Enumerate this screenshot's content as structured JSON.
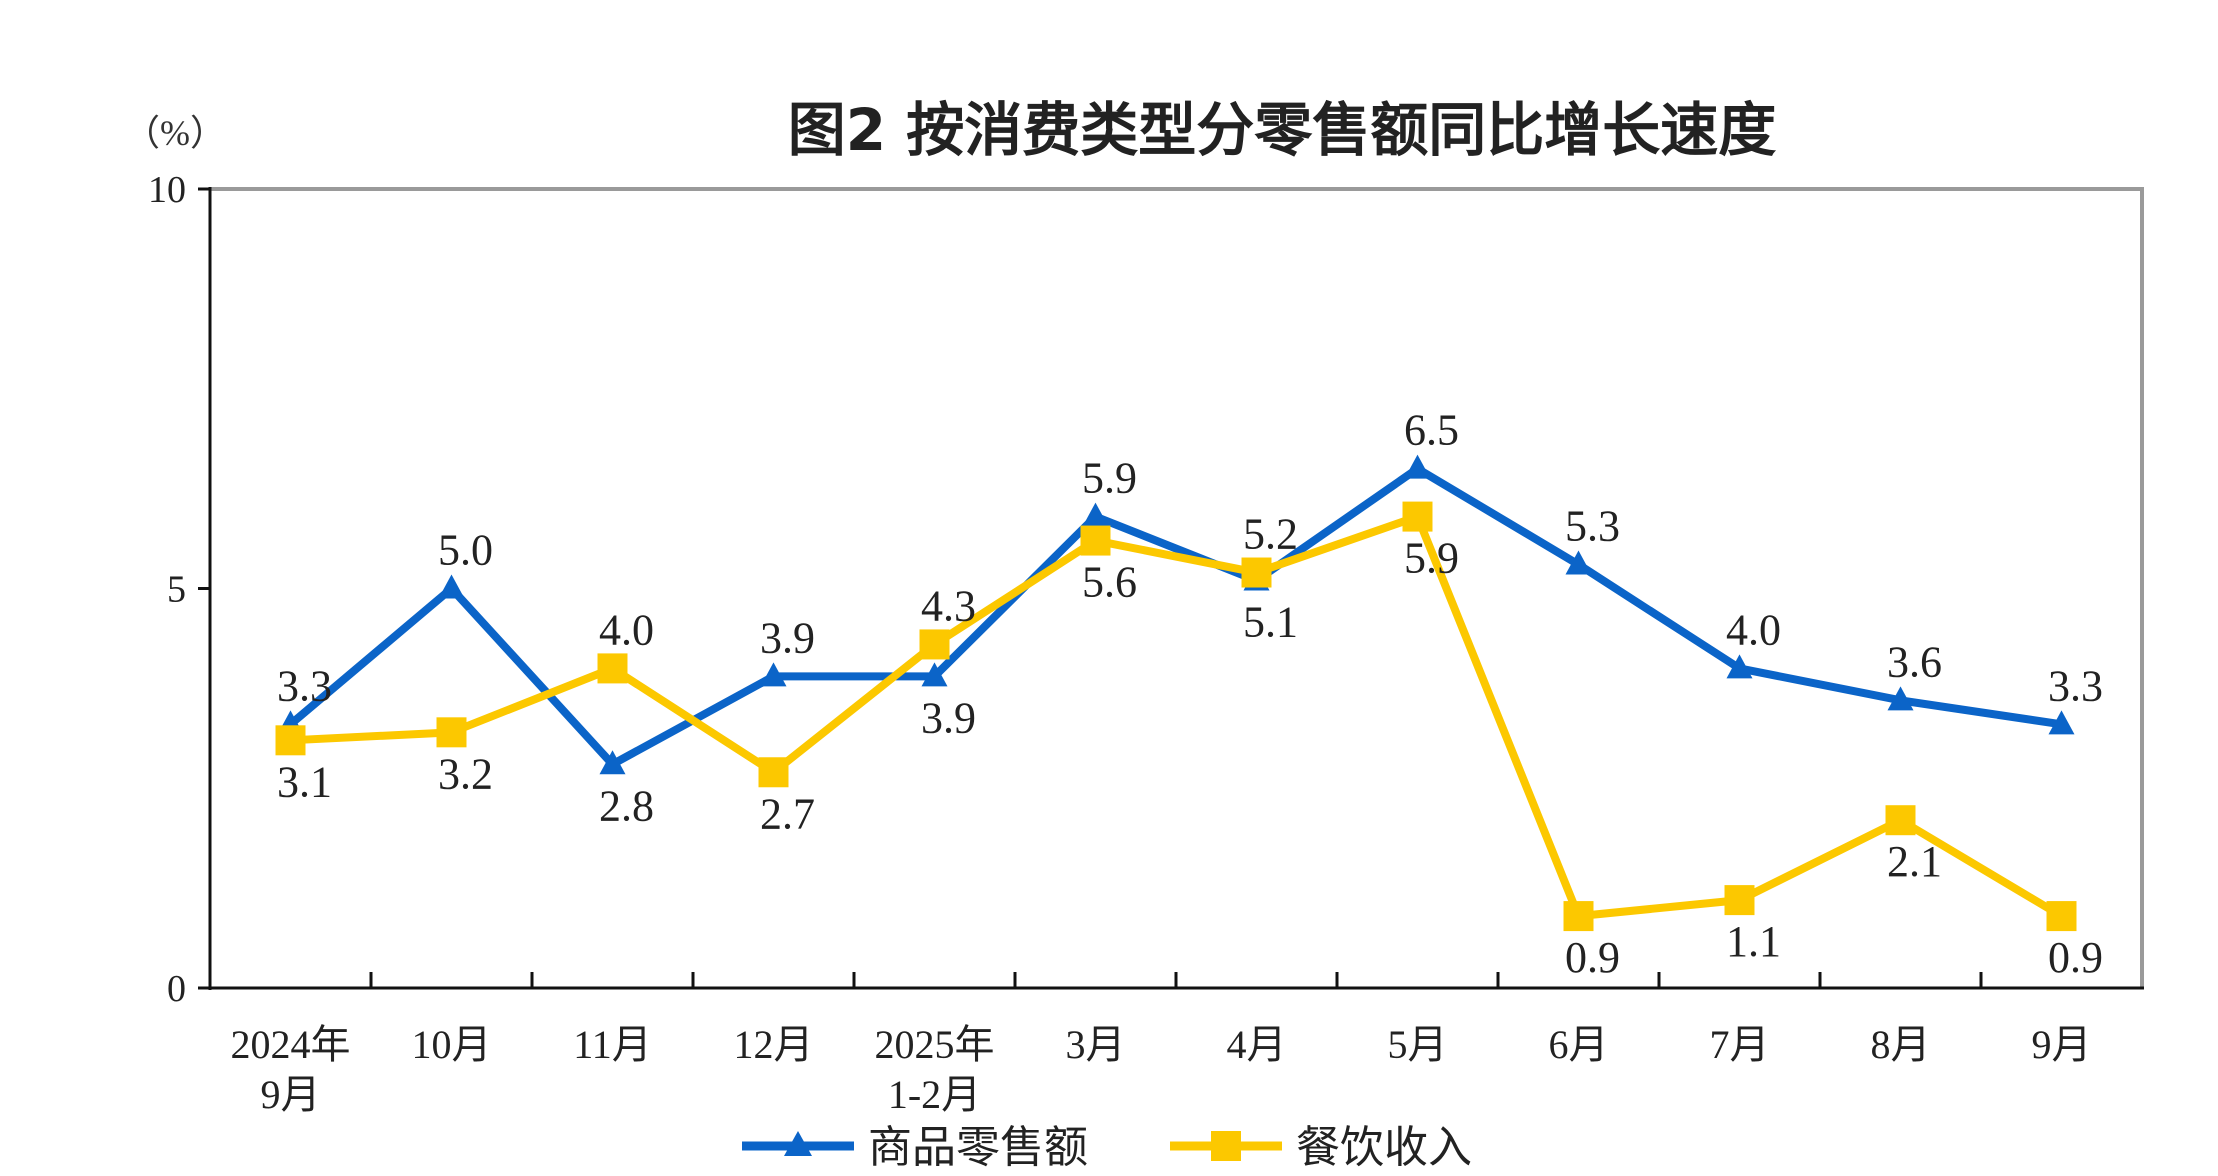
{
  "chart_data": {
    "type": "line",
    "title": "图2  按消费类型分零售额同比增长速度",
    "ylabel": "（%）",
    "xlabel": "",
    "ylim": [
      0,
      10
    ],
    "yticks": [
      "0",
      "5",
      "10"
    ],
    "categories": [
      "2024年\n9月",
      "10月",
      "11月",
      "12月",
      "2025年\n1-2月",
      "3月",
      "4月",
      "5月",
      "6月",
      "7月",
      "8月",
      "9月"
    ],
    "grid": false,
    "legend_position": "bottom",
    "series": [
      {
        "name": "商品零售额",
        "color": "#0b64c8",
        "marker": "triangle",
        "values": [
          3.3,
          5.0,
          2.8,
          3.9,
          3.9,
          5.9,
          5.1,
          6.5,
          5.3,
          4.0,
          3.6,
          3.3
        ],
        "labels": [
          "3.3",
          "5.0",
          "2.8",
          "3.9",
          "3.9",
          "5.9",
          "5.1",
          "6.5",
          "5.3",
          "4.0",
          "3.6",
          "3.3"
        ]
      },
      {
        "name": "餐饮收入",
        "color": "#fcc800",
        "marker": "square",
        "values": [
          3.1,
          3.2,
          4.0,
          2.7,
          4.3,
          5.6,
          5.2,
          5.9,
          0.9,
          1.1,
          2.1,
          0.9
        ],
        "labels": [
          "3.1",
          "3.2",
          "4.0",
          "2.7",
          "4.3",
          "5.6",
          "5.2",
          "5.9",
          "0.9",
          "1.1",
          "2.1",
          "0.9"
        ]
      }
    ]
  }
}
